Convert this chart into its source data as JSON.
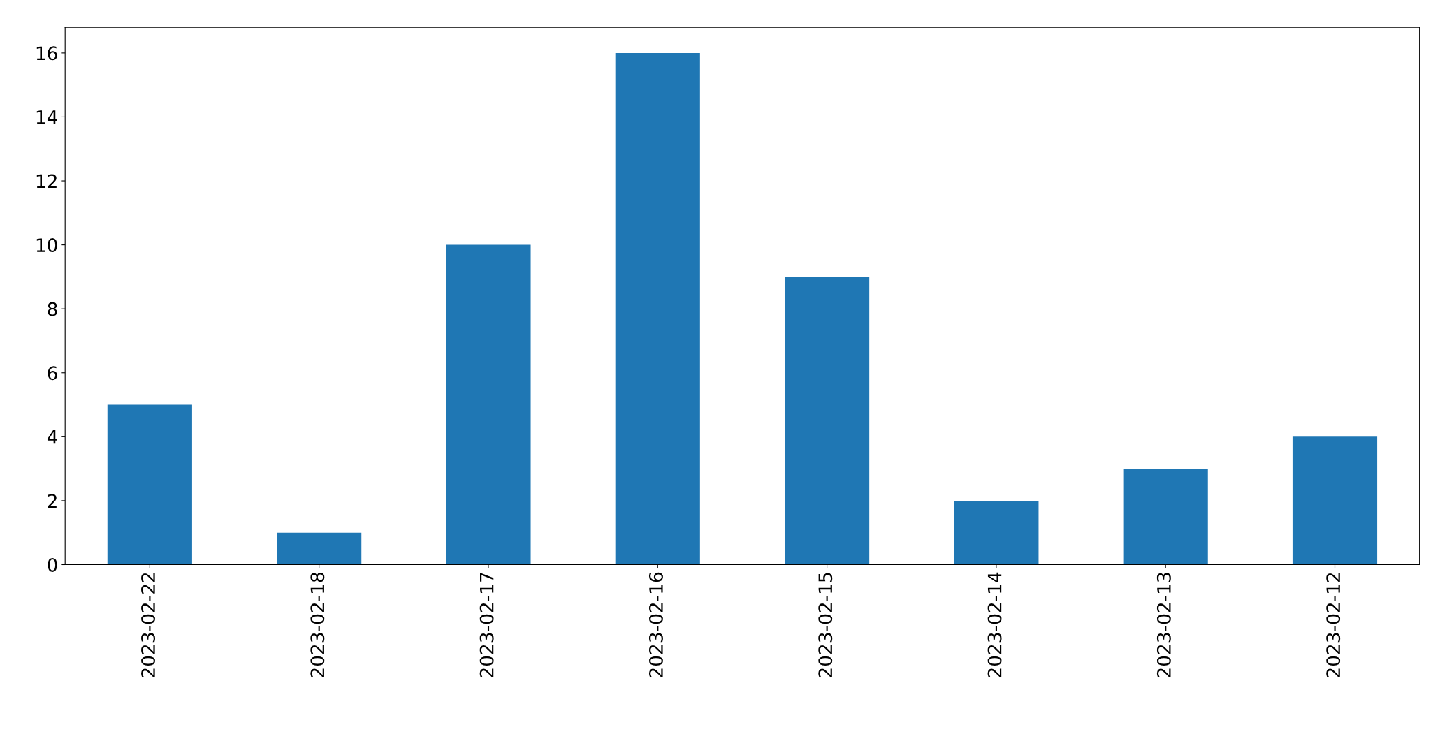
{
  "chart_data": {
    "type": "bar",
    "categories": [
      "2023-02-22",
      "2023-02-18",
      "2023-02-17",
      "2023-02-16",
      "2023-02-15",
      "2023-02-14",
      "2023-02-13",
      "2023-02-12"
    ],
    "values": [
      5,
      1,
      10,
      16,
      9,
      2,
      3,
      4
    ],
    "color": "#1f77b4",
    "ylim": [
      0,
      16.8
    ],
    "yticks": [
      0,
      2,
      4,
      6,
      8,
      10,
      12,
      14,
      16
    ],
    "grid": false,
    "legend": false
  }
}
